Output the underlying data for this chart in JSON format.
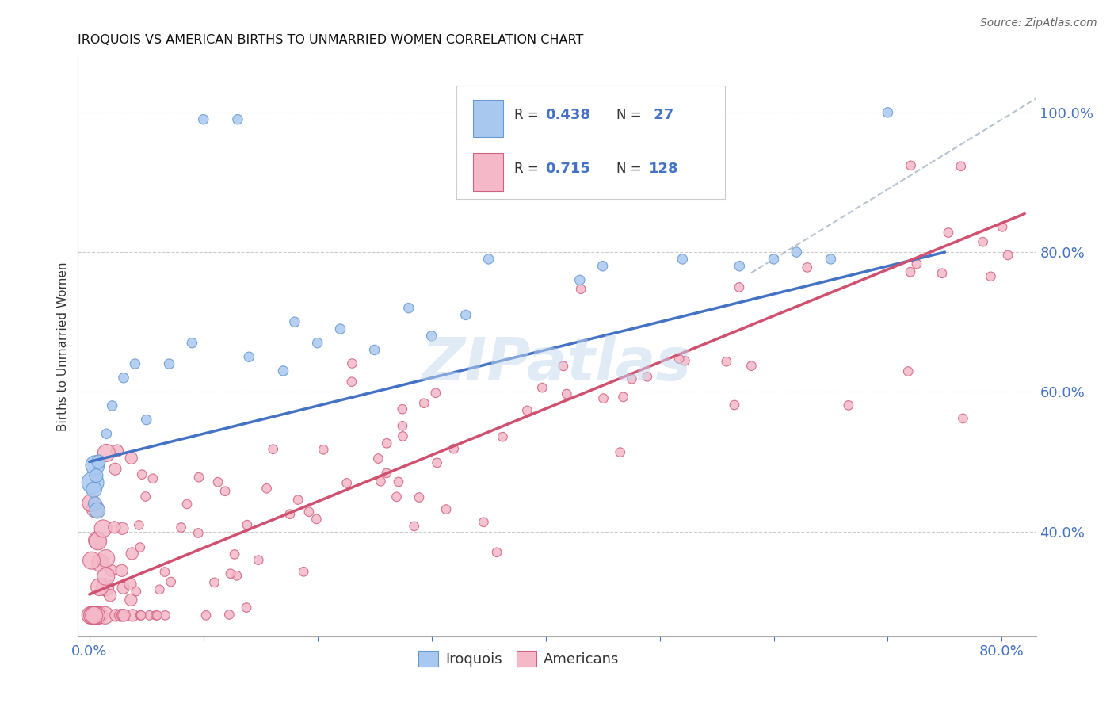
{
  "title": "IROQUOIS VS AMERICAN BIRTHS TO UNMARRIED WOMEN CORRELATION CHART",
  "source": "Source: ZipAtlas.com",
  "ylabel": "Births to Unmarried Women",
  "watermark": "ZIPatlas",
  "xlim": [
    -0.01,
    0.83
  ],
  "ylim": [
    0.25,
    1.08
  ],
  "xtick_positions": [
    0.0,
    0.1,
    0.2,
    0.3,
    0.4,
    0.5,
    0.6,
    0.7,
    0.8
  ],
  "xtick_labels": [
    "0.0%",
    "",
    "",
    "",
    "",
    "",
    "",
    "",
    "80.0%"
  ],
  "ytick_right_vals": [
    0.4,
    0.6,
    0.8,
    1.0
  ],
  "ytick_right_labels": [
    "40.0%",
    "60.0%",
    "80.0%",
    "100.0%"
  ],
  "iroquois_color": "#A8C8F0",
  "iroquois_edge_color": "#6699CC",
  "iroquois_line_color": "#4472C4",
  "americans_color": "#F4B8C8",
  "americans_edge_color": "#D06080",
  "americans_line_color": "#D05070",
  "background_color": "#FFFFFF",
  "grid_color": "#CCCCCC",
  "axis_color": "#AAAAAA",
  "label_color": "#4472C4",
  "title_fontsize": 11.5,
  "tick_fontsize": 13,
  "iroquois_R": 0.438,
  "iroquois_N": 27,
  "americans_R": 0.715,
  "americans_N": 128,
  "blue_line_x0": 0.0,
  "blue_line_y0": 0.5,
  "blue_line_x1": 0.75,
  "blue_line_y1": 0.8,
  "pink_line_x0": 0.0,
  "pink_line_y0": 0.31,
  "pink_line_x1": 0.82,
  "pink_line_y1": 0.855,
  "dash_line_x0": 0.58,
  "dash_line_y0": 0.77,
  "dash_line_x1": 0.83,
  "dash_line_y1": 1.02
}
